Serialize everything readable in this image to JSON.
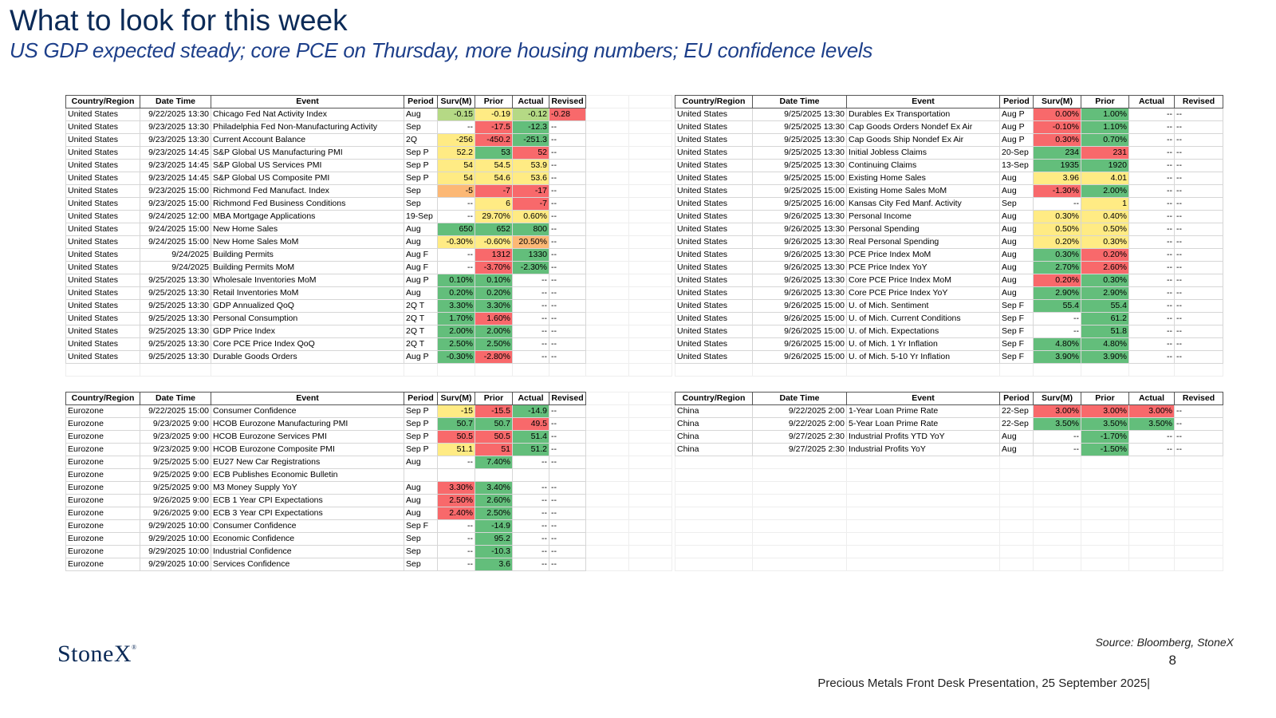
{
  "header": {
    "title": "What to look for this week",
    "subtitle": "US GDP expected steady; core PCE on Thursday, more housing numbers; EU confidence levels"
  },
  "columns": [
    "Country/Region",
    "Date Time",
    "Event",
    "Period",
    "Surv(M)",
    "Prior",
    "Actual",
    "Revised"
  ],
  "colors": {
    "g": "#63be7b",
    "lg": "#b5d985",
    "y": "#ffeb84",
    "o": "#fcb875",
    "r": "#f8696b"
  },
  "tables": {
    "us_left": {
      "rows": [
        [
          "United States",
          "9/22/2025 13:30",
          "Chicago Fed Nat Activity Index",
          "Aug",
          "-0.15",
          "-0.19",
          "-0.12",
          "-0.28"
        ],
        [
          "United States",
          "9/23/2025 13:30",
          "Philadelphia Fed Non-Manufacturing Activity",
          "Sep",
          "--",
          "-17.5",
          "-12.3",
          "--"
        ],
        [
          "United States",
          "9/23/2025 13:30",
          "Current Account Balance",
          "2Q",
          "-256",
          "-450.2",
          "-251.3",
          "--"
        ],
        [
          "United States",
          "9/23/2025 14:45",
          "S&P Global US Manufacturing PMI",
          "Sep P",
          "52.2",
          "53",
          "52",
          "--"
        ],
        [
          "United States",
          "9/23/2025 14:45",
          "S&P Global US Services PMI",
          "Sep P",
          "54",
          "54.5",
          "53.9",
          "--"
        ],
        [
          "United States",
          "9/23/2025 14:45",
          "S&P Global US Composite PMI",
          "Sep P",
          "54",
          "54.6",
          "53.6",
          "--"
        ],
        [
          "United States",
          "9/23/2025 15:00",
          "Richmond Fed Manufact. Index",
          "Sep",
          "-5",
          "-7",
          "-17",
          "--"
        ],
        [
          "United States",
          "9/23/2025 15:00",
          "Richmond Fed Business Conditions",
          "Sep",
          "--",
          "6",
          "-7",
          "--"
        ],
        [
          "United States",
          "9/24/2025 12:00",
          "MBA Mortgage Applications",
          "19-Sep",
          "--",
          "29.70%",
          "0.60%",
          "--"
        ],
        [
          "United States",
          "9/24/2025 15:00",
          "New Home Sales",
          "Aug",
          "650",
          "652",
          "800",
          "--"
        ],
        [
          "United States",
          "9/24/2025 15:00",
          "New Home Sales MoM",
          "Aug",
          "-0.30%",
          "-0.60%",
          "20.50%",
          "--"
        ],
        [
          "United States",
          "9/24/2025",
          "Building Permits",
          "Aug F",
          "--",
          "1312",
          "1330",
          "--"
        ],
        [
          "United States",
          "9/24/2025",
          "Building Permits MoM",
          "Aug F",
          "--",
          "-3.70%",
          "-2.30%",
          "--"
        ],
        [
          "United States",
          "9/25/2025 13:30",
          "Wholesale Inventories MoM",
          "Aug P",
          "0.10%",
          "0.10%",
          "--",
          "--"
        ],
        [
          "United States",
          "9/25/2025 13:30",
          "Retail Inventories MoM",
          "Aug",
          "0.20%",
          "0.20%",
          "--",
          "--"
        ],
        [
          "United States",
          "9/25/2025 13:30",
          "GDP Annualized QoQ",
          "2Q T",
          "3.30%",
          "3.30%",
          "--",
          "--"
        ],
        [
          "United States",
          "9/25/2025 13:30",
          "Personal Consumption",
          "2Q T",
          "1.70%",
          "1.60%",
          "--",
          "--"
        ],
        [
          "United States",
          "9/25/2025 13:30",
          "GDP Price Index",
          "2Q T",
          "2.00%",
          "2.00%",
          "--",
          "--"
        ],
        [
          "United States",
          "9/25/2025 13:30",
          "Core PCE Price Index QoQ",
          "2Q T",
          "2.50%",
          "2.50%",
          "--",
          "--"
        ],
        [
          "United States",
          "9/25/2025 13:30",
          "Durable Goods Orders",
          "Aug P",
          "-0.30%",
          "-2.80%",
          "--",
          "--"
        ]
      ],
      "shading": [
        [
          "",
          "",
          "",
          "",
          "lg",
          "y",
          "lg",
          "r"
        ],
        [
          "",
          "",
          "",
          "",
          "",
          "r",
          "g",
          ""
        ],
        [
          "",
          "",
          "",
          "",
          "y",
          "r",
          "g",
          ""
        ],
        [
          "",
          "",
          "",
          "",
          "y",
          "g",
          "r",
          ""
        ],
        [
          "",
          "",
          "",
          "",
          "y",
          "y",
          "y",
          ""
        ],
        [
          "",
          "",
          "",
          "",
          "y",
          "y",
          "y",
          ""
        ],
        [
          "",
          "",
          "",
          "",
          "o",
          "r",
          "r",
          ""
        ],
        [
          "",
          "",
          "",
          "",
          "",
          "y",
          "r",
          ""
        ],
        [
          "",
          "",
          "",
          "",
          "",
          "y",
          "y",
          ""
        ],
        [
          "",
          "",
          "",
          "",
          "g",
          "g",
          "g",
          ""
        ],
        [
          "",
          "",
          "",
          "",
          "y",
          "y",
          "o",
          ""
        ],
        [
          "",
          "",
          "",
          "",
          "",
          "r",
          "g",
          ""
        ],
        [
          "",
          "",
          "",
          "",
          "",
          "r",
          "g",
          ""
        ],
        [
          "",
          "",
          "",
          "",
          "g",
          "g",
          "",
          ""
        ],
        [
          "",
          "",
          "",
          "",
          "g",
          "g",
          "",
          ""
        ],
        [
          "",
          "",
          "",
          "",
          "g",
          "g",
          "",
          ""
        ],
        [
          "",
          "",
          "",
          "",
          "g",
          "r",
          "",
          ""
        ],
        [
          "",
          "",
          "",
          "",
          "g",
          "g",
          "",
          ""
        ],
        [
          "",
          "",
          "",
          "",
          "g",
          "g",
          "",
          ""
        ],
        [
          "",
          "",
          "",
          "",
          "g",
          "r",
          "",
          ""
        ]
      ]
    },
    "us_right": {
      "rows": [
        [
          "United States",
          "9/25/2025 13:30",
          "Durables Ex Transportation",
          "Aug P",
          "0.00%",
          "1.00%",
          "--",
          "--"
        ],
        [
          "United States",
          "9/25/2025 13:30",
          "Cap Goods Orders Nondef Ex Air",
          "Aug P",
          "-0.10%",
          "1.10%",
          "--",
          "--"
        ],
        [
          "United States",
          "9/25/2025 13:30",
          "Cap Goods Ship Nondef Ex Air",
          "Aug P",
          "0.30%",
          "0.70%",
          "--",
          "--"
        ],
        [
          "United States",
          "9/25/2025 13:30",
          "Initial Jobless Claims",
          "20-Sep",
          "234",
          "231",
          "--",
          "--"
        ],
        [
          "United States",
          "9/25/2025 13:30",
          "Continuing Claims",
          "13-Sep",
          "1935",
          "1920",
          "--",
          "--"
        ],
        [
          "United States",
          "9/25/2025 15:00",
          "Existing Home Sales",
          "Aug",
          "3.96",
          "4.01",
          "--",
          "--"
        ],
        [
          "United States",
          "9/25/2025 15:00",
          "Existing Home Sales MoM",
          "Aug",
          "-1.30%",
          "2.00%",
          "--",
          "--"
        ],
        [
          "United States",
          "9/25/2025 16:00",
          "Kansas City Fed Manf. Activity",
          "Sep",
          "--",
          "1",
          "--",
          "--"
        ],
        [
          "United States",
          "9/26/2025 13:30",
          "Personal Income",
          "Aug",
          "0.30%",
          "0.40%",
          "--",
          "--"
        ],
        [
          "United States",
          "9/26/2025 13:30",
          "Personal Spending",
          "Aug",
          "0.50%",
          "0.50%",
          "--",
          "--"
        ],
        [
          "United States",
          "9/26/2025 13:30",
          "Real Personal Spending",
          "Aug",
          "0.20%",
          "0.30%",
          "--",
          "--"
        ],
        [
          "United States",
          "9/26/2025 13:30",
          "PCE Price Index MoM",
          "Aug",
          "0.30%",
          "0.20%",
          "--",
          "--"
        ],
        [
          "United States",
          "9/26/2025 13:30",
          "PCE Price Index YoY",
          "Aug",
          "2.70%",
          "2.60%",
          "--",
          "--"
        ],
        [
          "United States",
          "9/26/2025 13:30",
          "Core PCE Price Index MoM",
          "Aug",
          "0.20%",
          "0.30%",
          "--",
          "--"
        ],
        [
          "United States",
          "9/26/2025 13:30",
          "Core PCE Price Index YoY",
          "Aug",
          "2.90%",
          "2.90%",
          "--",
          "--"
        ],
        [
          "United States",
          "9/26/2025 15:00",
          "U. of Mich. Sentiment",
          "Sep F",
          "55.4",
          "55.4",
          "--",
          "--"
        ],
        [
          "United States",
          "9/26/2025 15:00",
          "U. of Mich. Current Conditions",
          "Sep F",
          "--",
          "61.2",
          "--",
          "--"
        ],
        [
          "United States",
          "9/26/2025 15:00",
          "U. of Mich. Expectations",
          "Sep F",
          "--",
          "51.8",
          "--",
          "--"
        ],
        [
          "United States",
          "9/26/2025 15:00",
          "U. of Mich. 1 Yr Inflation",
          "Sep F",
          "4.80%",
          "4.80%",
          "--",
          "--"
        ],
        [
          "United States",
          "9/26/2025 15:00",
          "U. of Mich. 5-10 Yr Inflation",
          "Sep F",
          "3.90%",
          "3.90%",
          "--",
          "--"
        ]
      ],
      "shading": [
        [
          "",
          "",
          "",
          "",
          "r",
          "g",
          "",
          ""
        ],
        [
          "",
          "",
          "",
          "",
          "r",
          "g",
          "",
          ""
        ],
        [
          "",
          "",
          "",
          "",
          "r",
          "g",
          "",
          ""
        ],
        [
          "",
          "",
          "",
          "",
          "g",
          "r",
          "",
          ""
        ],
        [
          "",
          "",
          "",
          "",
          "g",
          "g",
          "",
          ""
        ],
        [
          "",
          "",
          "",
          "",
          "y",
          "y",
          "",
          ""
        ],
        [
          "",
          "",
          "",
          "",
          "r",
          "g",
          "",
          ""
        ],
        [
          "",
          "",
          "",
          "",
          "",
          "y",
          "",
          ""
        ],
        [
          "",
          "",
          "",
          "",
          "y",
          "y",
          "",
          ""
        ],
        [
          "",
          "",
          "",
          "",
          "y",
          "y",
          "",
          ""
        ],
        [
          "",
          "",
          "",
          "",
          "y",
          "y",
          "",
          ""
        ],
        [
          "",
          "",
          "",
          "",
          "g",
          "r",
          "",
          ""
        ],
        [
          "",
          "",
          "",
          "",
          "g",
          "r",
          "",
          ""
        ],
        [
          "",
          "",
          "",
          "",
          "r",
          "g",
          "",
          ""
        ],
        [
          "",
          "",
          "",
          "",
          "g",
          "g",
          "",
          ""
        ],
        [
          "",
          "",
          "",
          "",
          "g",
          "g",
          "",
          ""
        ],
        [
          "",
          "",
          "",
          "",
          "",
          "g",
          "",
          ""
        ],
        [
          "",
          "",
          "",
          "",
          "",
          "g",
          "",
          ""
        ],
        [
          "",
          "",
          "",
          "",
          "g",
          "g",
          "",
          ""
        ],
        [
          "",
          "",
          "",
          "",
          "g",
          "g",
          "",
          ""
        ]
      ]
    },
    "eu": {
      "rows": [
        [
          "Eurozone",
          "9/22/2025 15:00",
          "Consumer Confidence",
          "Sep P",
          "-15",
          "-15.5",
          "-14.9",
          "--"
        ],
        [
          "Eurozone",
          "9/23/2025 9:00",
          "HCOB Eurozone Manufacturing PMI",
          "Sep P",
          "50.7",
          "50.7",
          "49.5",
          "--"
        ],
        [
          "Eurozone",
          "9/23/2025 9:00",
          "HCOB Eurozone Services PMI",
          "Sep P",
          "50.5",
          "50.5",
          "51.4",
          "--"
        ],
        [
          "Eurozone",
          "9/23/2025 9:00",
          "HCOB Eurozone Composite PMI",
          "Sep P",
          "51.1",
          "51",
          "51.2",
          "--"
        ],
        [
          "Eurozone",
          "9/25/2025 5:00",
          "EU27 New Car Registrations",
          "Aug",
          "--",
          "7.40%",
          "--",
          "--"
        ],
        [
          "Eurozone",
          "9/25/2025 9:00",
          "ECB Publishes Economic Bulletin",
          "",
          "",
          "",
          "",
          ""
        ],
        [
          "Eurozone",
          "9/25/2025 9:00",
          "M3 Money Supply YoY",
          "Aug",
          "3.30%",
          "3.40%",
          "--",
          "--"
        ],
        [
          "Eurozone",
          "9/26/2025 9:00",
          "ECB 1 Year CPI Expectations",
          "Aug",
          "2.50%",
          "2.60%",
          "--",
          "--"
        ],
        [
          "Eurozone",
          "9/26/2025 9:00",
          "ECB 3 Year CPI Expectations",
          "Aug",
          "2.40%",
          "2.50%",
          "--",
          "--"
        ],
        [
          "Eurozone",
          "9/29/2025 10:00",
          "Consumer Confidence",
          "Sep F",
          "--",
          "-14.9",
          "--",
          "--"
        ],
        [
          "Eurozone",
          "9/29/2025 10:00",
          "Economic Confidence",
          "Sep",
          "--",
          "95.2",
          "--",
          "--"
        ],
        [
          "Eurozone",
          "9/29/2025 10:00",
          "Industrial Confidence",
          "Sep",
          "--",
          "-10.3",
          "--",
          "--"
        ],
        [
          "Eurozone",
          "9/29/2025 10:00",
          "Services Confidence",
          "Sep",
          "--",
          "3.6",
          "--",
          "--"
        ]
      ],
      "shading": [
        [
          "",
          "",
          "",
          "",
          "y",
          "r",
          "g",
          ""
        ],
        [
          "",
          "",
          "",
          "",
          "g",
          "g",
          "r",
          ""
        ],
        [
          "",
          "",
          "",
          "",
          "r",
          "r",
          "g",
          ""
        ],
        [
          "",
          "",
          "",
          "",
          "y",
          "r",
          "g",
          ""
        ],
        [
          "",
          "",
          "",
          "",
          "",
          "g",
          "",
          ""
        ],
        [
          "",
          "",
          "",
          "",
          "",
          "",
          "",
          ""
        ],
        [
          "",
          "",
          "",
          "",
          "r",
          "g",
          "",
          ""
        ],
        [
          "",
          "",
          "",
          "",
          "r",
          "g",
          "",
          ""
        ],
        [
          "",
          "",
          "",
          "",
          "r",
          "g",
          "",
          ""
        ],
        [
          "",
          "",
          "",
          "",
          "",
          "g",
          "",
          ""
        ],
        [
          "",
          "",
          "",
          "",
          "",
          "g",
          "",
          ""
        ],
        [
          "",
          "",
          "",
          "",
          "",
          "g",
          "",
          ""
        ],
        [
          "",
          "",
          "",
          "",
          "",
          "g",
          "",
          ""
        ]
      ]
    },
    "china": {
      "rows": [
        [
          "China",
          "9/22/2025 2:00",
          "1-Year Loan Prime Rate",
          "22-Sep",
          "3.00%",
          "3.00%",
          "3.00%",
          "--"
        ],
        [
          "China",
          "9/22/2025 2:00",
          "5-Year Loan Prime Rate",
          "22-Sep",
          "3.50%",
          "3.50%",
          "3.50%",
          "--"
        ],
        [
          "China",
          "9/27/2025 2:30",
          "Industrial Profits YTD YoY",
          "Aug",
          "--",
          "-1.70%",
          "--",
          "--"
        ],
        [
          "China",
          "9/27/2025 2:30",
          "Industrial Profits YoY",
          "Aug",
          "--",
          "-1.50%",
          "--",
          "--"
        ]
      ],
      "shading": [
        [
          "",
          "",
          "",
          "",
          "r",
          "r",
          "r",
          ""
        ],
        [
          "",
          "",
          "",
          "",
          "g",
          "g",
          "g",
          ""
        ],
        [
          "",
          "",
          "",
          "",
          "",
          "g",
          "",
          ""
        ],
        [
          "",
          "",
          "",
          "",
          "",
          "g",
          "",
          ""
        ]
      ]
    }
  },
  "footer": {
    "logo": "StoneX",
    "logo_mark": "®",
    "source": "Source: Bloomberg, StoneX",
    "page": "8",
    "presentation": "Precious Metals Front Desk Presentation, 25 September 2025|"
  }
}
